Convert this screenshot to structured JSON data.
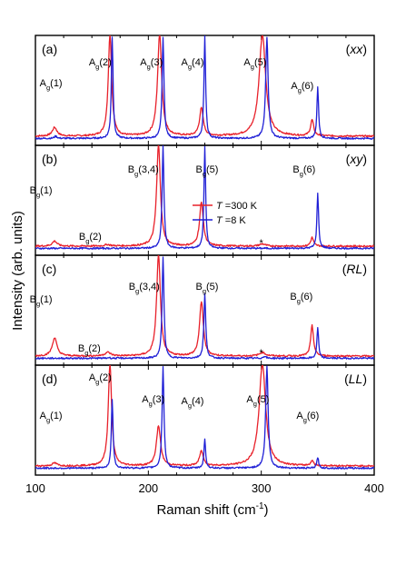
{
  "figure": {
    "xlabel": "Raman shift (cm",
    "xlabel_sup": "-1",
    "xlabel_close": ")",
    "ylabel": "Intensity (arb. units)"
  },
  "legend": {
    "entries": [
      {
        "name": "T =300 K",
        "italic": "T",
        "rest": " =300 K",
        "color": "#e8202a"
      },
      {
        "name": "T =8 K",
        "italic": "T",
        "rest": " =8 K",
        "color": "#1f1fd6"
      }
    ]
  },
  "chart_data": {
    "type": "line",
    "xlim": [
      100,
      400
    ],
    "xticks": [
      100,
      200,
      300,
      400
    ],
    "panels": [
      {
        "label": "(a)",
        "pol": "(xx)",
        "pol_letters": "xx",
        "peaks": [
          {
            "sym": "A",
            "sub": "g",
            "idx": "(1)",
            "x": 117
          },
          {
            "sym": "A",
            "sub": "g",
            "idx": "(2)",
            "x": 167
          },
          {
            "sym": "A",
            "sub": "g",
            "idx": "(3)",
            "x": 210
          },
          {
            "sym": "A",
            "sub": "g",
            "idx": "(4)",
            "x": 248
          },
          {
            "sym": "A",
            "sub": "g",
            "idx": "(5)",
            "x": 301
          },
          {
            "sym": "A",
            "sub": "g",
            "idx": "(6)",
            "x": 346
          }
        ],
        "series": [
          {
            "name": "T =300 K",
            "baseline": 0.05,
            "peaks": [
              [
                117,
                0.12,
                2.5
              ],
              [
                166,
                1.4,
                1.8
              ],
              [
                210,
                1.4,
                2.2
              ],
              [
                247,
                0.38,
                2.0
              ],
              [
                301,
                1.4,
                3.5
              ],
              [
                345,
                0.22,
                1.6
              ]
            ]
          },
          {
            "name": "T =8 K",
            "baseline": 0.02,
            "peaks": [
              [
                118,
                0.03,
                1.5
              ],
              [
                168,
                1.4,
                0.9
              ],
              [
                213,
                1.4,
                1.0
              ],
              [
                250,
                1.4,
                0.9
              ],
              [
                305,
                1.4,
                1.3
              ],
              [
                350,
                0.7,
                0.9
              ]
            ]
          }
        ]
      },
      {
        "label": "(b)",
        "pol": "(xy)",
        "pol_letters": "xy",
        "peaks": [
          {
            "sym": "B",
            "sub": "g",
            "idx": "(1)",
            "x": 117
          },
          {
            "sym": "B",
            "sub": "g",
            "idx": "(2)",
            "x": 163
          },
          {
            "sym": "B",
            "sub": "g",
            "idx": "(3,4)",
            "x": 210
          },
          {
            "sym": "B",
            "sub": "g",
            "idx": "(5)",
            "x": 252
          },
          {
            "sym": "B",
            "sub": "g",
            "idx": "(6)",
            "x": 346
          }
        ],
        "series": [
          {
            "name": "T =300 K",
            "baseline": 0.05,
            "peaks": [
              [
                117,
                0.07,
                2.5
              ],
              [
                164,
                0.02,
                3.0
              ],
              [
                209,
                1.4,
                2.0
              ],
              [
                247,
                0.6,
                2.0
              ],
              [
                301,
                0.03,
                3.0
              ],
              [
                345,
                0.12,
                1.5
              ]
            ]
          },
          {
            "name": "T =8 K",
            "baseline": 0.02,
            "peaks": [
              [
                213,
                1.4,
                1.0
              ],
              [
                250,
                1.4,
                0.9
              ],
              [
                350,
                0.75,
                0.9
              ]
            ]
          }
        ]
      },
      {
        "label": "(c)",
        "pol": "(RL)",
        "pol_letters": "RL",
        "peaks": [
          {
            "sym": "B",
            "sub": "g",
            "idx": "(1)",
            "x": 117
          },
          {
            "sym": "B",
            "sub": "g",
            "idx": "(2)",
            "x": 163
          },
          {
            "sym": "B",
            "sub": "g",
            "idx": "(3,4)",
            "x": 210
          },
          {
            "sym": "B",
            "sub": "g",
            "idx": "(5)",
            "x": 252
          },
          {
            "sym": "B",
            "sub": "g",
            "idx": "(6)",
            "x": 346
          }
        ],
        "series": [
          {
            "name": "T =300 K",
            "baseline": 0.05,
            "peaks": [
              [
                117,
                0.25,
                2.5
              ],
              [
                164,
                0.05,
                3.0
              ],
              [
                209,
                1.4,
                2.0
              ],
              [
                247,
                0.75,
                2.0
              ],
              [
                301,
                0.05,
                3.0
              ],
              [
                345,
                0.42,
                1.5
              ]
            ]
          },
          {
            "name": "T =8 K",
            "baseline": 0.02,
            "peaks": [
              [
                165,
                0.01,
                1.0
              ],
              [
                213,
                1.4,
                1.0
              ],
              [
                250,
                0.88,
                1.0
              ],
              [
                303,
                0.03,
                1.2
              ],
              [
                350,
                0.42,
                0.9
              ]
            ]
          }
        ]
      },
      {
        "label": "(d)",
        "pol": "(LL)",
        "pol_letters": "LL",
        "peaks": [
          {
            "sym": "A",
            "sub": "g",
            "idx": "(1)",
            "x": 117
          },
          {
            "sym": "A",
            "sub": "g",
            "idx": "(2)",
            "x": 167
          },
          {
            "sym": "A",
            "sub": "g",
            "idx": "(3)",
            "x": 210
          },
          {
            "sym": "A",
            "sub": "g",
            "idx": "(4)",
            "x": 248
          },
          {
            "sym": "A",
            "sub": "g",
            "idx": "(5)",
            "x": 301
          },
          {
            "sym": "A",
            "sub": "g",
            "idx": "(6)",
            "x": 346
          }
        ],
        "series": [
          {
            "name": "T =300 K",
            "baseline": 0.05,
            "peaks": [
              [
                117,
                0.04,
                2.5
              ],
              [
                166,
                1.4,
                1.8
              ],
              [
                209,
                0.55,
                2.2
              ],
              [
                247,
                0.2,
                2.0
              ],
              [
                301,
                1.4,
                3.5
              ],
              [
                345,
                0.07,
                1.5
              ]
            ]
          },
          {
            "name": "T =8 K",
            "baseline": 0.02,
            "peaks": [
              [
                168,
                0.95,
                0.9
              ],
              [
                213,
                1.4,
                1.0
              ],
              [
                250,
                0.4,
                0.9
              ],
              [
                305,
                1.4,
                1.3
              ],
              [
                350,
                0.15,
                0.9
              ]
            ]
          }
        ]
      }
    ],
    "annotations": [
      {
        "panel": 1,
        "text": "*",
        "x": 300
      },
      {
        "panel": 2,
        "text": "*",
        "x": 300
      }
    ]
  }
}
